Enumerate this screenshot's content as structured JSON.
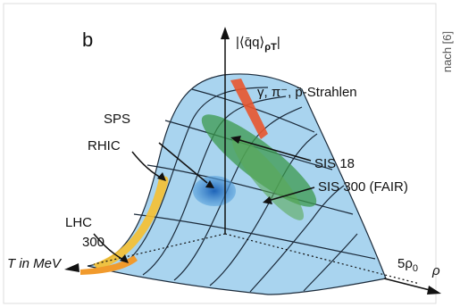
{
  "panel_label": "b",
  "source_note": "nach [6]",
  "axes": {
    "vertical": {
      "main": "|⟨q̄q⟩",
      "sub": "ρT",
      "end": "|"
    },
    "temperature": {
      "label": "T in MeV",
      "tick": "300"
    },
    "density": {
      "label": "ρ",
      "tick_main": "5ρ",
      "tick_sub": "0"
    }
  },
  "regions": {
    "gamma": "γ, π⁻, p̄-Strahlen",
    "sps": "SPS",
    "rhic": "RHIC",
    "lhc": "LHC",
    "sis18": "SIS 18",
    "sis300": "SIS 300 (FAIR)"
  }
}
